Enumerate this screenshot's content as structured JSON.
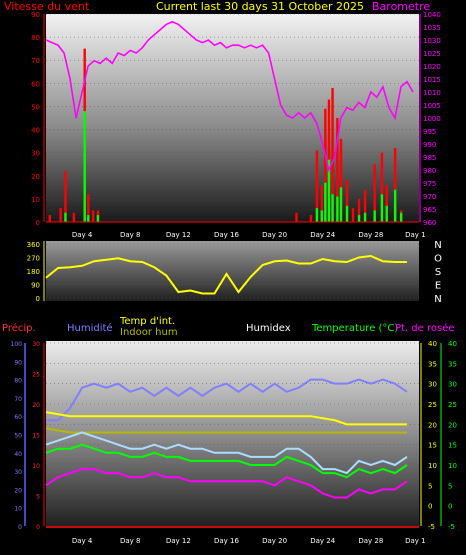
{
  "colors": {
    "wind_speed": "#ff0000",
    "barometer": "#ff00ff",
    "title": "#ffff00",
    "wind_dir": "#ffff00",
    "gust": "#00ff00",
    "precip": "#ff0000",
    "humidity": "#7f7fff",
    "temp_in": "#ffff00",
    "indoor_hum": "#b8b800",
    "humidex": "#ffffff",
    "temperature": "#00ff00",
    "dewpoint": "#ff00ff",
    "feels": "#aaddff"
  },
  "chart_data": [
    {
      "type": "line",
      "title": "Current last 30 days 31 October 2025",
      "left_label": "Vitesse du vent",
      "right_label": "Barometre",
      "x_ticks": [
        "Day 4",
        "Day 8",
        "Day 12",
        "Day 16",
        "Day 20",
        "Day 24",
        "Day 28",
        "Day 1"
      ],
      "left_ylim": [
        0,
        90
      ],
      "left_ticks": [
        "0",
        "10",
        "20",
        "30",
        "40",
        "50",
        "60",
        "70",
        "80",
        "90"
      ],
      "right_ylim": [
        960,
        1040
      ],
      "right_ticks": [
        "960",
        "965",
        "970",
        "975",
        "980",
        "985",
        "990",
        "995",
        "1000",
        "1005",
        "1010",
        "1015",
        "1020",
        "1025",
        "1030",
        "1035",
        "1040"
      ],
      "series": [
        {
          "name": "Barometre",
          "x": [
            0,
            0.5,
            1,
            1.5,
            2,
            2.5,
            3,
            3.5,
            4,
            4.5,
            5,
            5.5,
            6,
            6.5,
            7,
            7.5,
            8,
            8.5,
            9,
            9.5,
            10,
            10.5,
            11,
            11.5,
            12,
            12.5,
            13,
            13.5,
            14,
            14.5,
            15,
            15.5,
            16,
            16.5,
            17,
            17.5,
            18,
            18.5,
            19,
            19.5,
            20,
            20.5,
            21,
            21.5,
            22,
            22.5,
            23,
            23.5,
            24,
            24.5,
            25,
            25.5,
            26,
            26.5,
            27,
            27.5,
            28,
            28.5,
            29,
            29.5,
            30,
            30.5
          ],
          "values": [
            1030,
            1029,
            1028,
            1025,
            1015,
            1000,
            1010,
            1020,
            1022,
            1021,
            1023,
            1021,
            1025,
            1024,
            1026,
            1025,
            1027,
            1030,
            1032,
            1034,
            1036,
            1037,
            1036,
            1034,
            1032,
            1030,
            1029,
            1030,
            1028,
            1029,
            1027,
            1028,
            1028,
            1027,
            1028,
            1027,
            1028,
            1025,
            1015,
            1005,
            1001,
            1000,
            1002,
            1000,
            1002,
            998,
            990,
            980,
            985,
            1000,
            1004,
            1003,
            1006,
            1004,
            1010,
            1008,
            1012,
            1004,
            1000,
            1012,
            1014,
            1010
          ]
        }
      ],
      "bars": [
        {
          "name": "Vitesse du vent",
          "x": [
            0.3,
            1.2,
            1.6,
            2.3,
            3.2,
            3.5,
            3.9,
            4.3,
            20.8,
            22.0,
            22.5,
            22.9,
            23.2,
            23.5,
            23.8,
            24.2,
            24.5,
            25.0,
            25.5,
            26.0,
            26.5,
            27.3,
            27.9,
            28.3,
            29.0,
            29.5
          ],
          "values": [
            3,
            6,
            22,
            4,
            75,
            12,
            5,
            5,
            4,
            3,
            31,
            16,
            49,
            53,
            58,
            45,
            36,
            18,
            6,
            10,
            14,
            25,
            30,
            16,
            32,
            5
          ]
        },
        {
          "name": "Rafale",
          "x": [
            1.6,
            3.2,
            3.5,
            4.3,
            22.5,
            22.9,
            23.2,
            23.5,
            23.8,
            24.2,
            24.5,
            25.0,
            26.0,
            26.5,
            27.3,
            27.9,
            28.3,
            29.0,
            29.5
          ],
          "values": [
            4,
            48,
            3,
            3,
            6,
            5,
            17,
            27,
            12,
            11,
            15,
            7,
            3,
            4,
            5,
            12,
            7,
            14,
            4
          ]
        }
      ]
    },
    {
      "type": "line",
      "left_ticks": [
        "0",
        "90",
        "180",
        "270",
        "360"
      ],
      "right_labels": [
        "N",
        "O",
        "S",
        "E",
        "N"
      ],
      "ylim": [
        0,
        360
      ],
      "series": [
        {
          "name": "Direction du vent",
          "x": [
            0,
            1,
            2,
            3,
            4,
            5,
            6,
            7,
            8,
            9,
            10,
            11,
            12,
            13,
            14,
            15,
            16,
            17,
            18,
            19,
            20,
            21,
            22,
            23,
            24,
            25,
            26,
            27,
            28,
            29,
            30
          ],
          "values": [
            135,
            200,
            205,
            215,
            245,
            255,
            265,
            245,
            240,
            205,
            150,
            40,
            50,
            30,
            30,
            160,
            40,
            140,
            220,
            245,
            250,
            230,
            230,
            260,
            245,
            240,
            270,
            280,
            245,
            240,
            240
          ]
        }
      ]
    },
    {
      "type": "line",
      "labels": {
        "precip": "Précip.",
        "humidity": "Humidité",
        "temp_in": "Temp d'int.",
        "indoor_hum": "Indoor hum",
        "humidex": "Humidex",
        "temperature": "Temperature (°C)",
        "dewpoint": "Pt. de rosée"
      },
      "x_ticks": [
        "Day 4",
        "Day 8",
        "Day 12",
        "Day 16",
        "Day 20",
        "Day 24",
        "Day 28",
        "Day 1"
      ],
      "precip_ticks": [
        "0",
        "10",
        "20",
        "30",
        "40",
        "50",
        "60",
        "70",
        "80",
        "90",
        "100"
      ],
      "humidity_ticks": [
        "0",
        "5",
        "10",
        "15",
        "20",
        "25",
        "30"
      ],
      "temp_ticks": [
        "-5",
        "0",
        "5",
        "10",
        "15",
        "20",
        "25",
        "30",
        "35",
        "40"
      ],
      "temp_ylim": [
        -5,
        40
      ],
      "series": [
        {
          "name": "Humidité",
          "x": [
            0,
            1,
            2,
            3,
            4,
            5,
            6,
            7,
            8,
            9,
            10,
            11,
            12,
            13,
            14,
            15,
            16,
            17,
            18,
            19,
            20,
            21,
            22,
            23,
            24,
            25,
            26,
            27,
            28,
            29,
            30
          ],
          "values": [
            21,
            21,
            24,
            29,
            30,
            29,
            30,
            28,
            29,
            27,
            29,
            27,
            29,
            27,
            29,
            30,
            28,
            30,
            28,
            30,
            28,
            29,
            31,
            31,
            30,
            30,
            31,
            30,
            31,
            30,
            28
          ]
        },
        {
          "name": "Temp d'int.",
          "x": [
            0,
            2,
            4,
            6,
            8,
            10,
            12,
            14,
            16,
            18,
            20,
            22,
            24,
            25,
            26,
            28,
            30
          ],
          "values": [
            23,
            22,
            22,
            22,
            22,
            22,
            22,
            22,
            22,
            22,
            22,
            22,
            21,
            20,
            20,
            20,
            20
          ]
        },
        {
          "name": "Indoor hum",
          "x": [
            0,
            2,
            4,
            6,
            8,
            10,
            12,
            14,
            16,
            18,
            20,
            22,
            24,
            26,
            28,
            30
          ],
          "values": [
            19,
            18,
            18,
            18,
            18,
            18,
            18,
            18,
            18,
            18,
            18,
            18,
            18,
            18,
            18,
            18
          ]
        },
        {
          "name": "Humidex",
          "x": [
            0,
            1,
            2,
            3,
            4,
            5,
            6,
            7,
            8,
            9,
            10,
            11,
            12,
            13,
            14,
            15,
            16,
            17,
            18,
            19,
            20,
            21,
            22,
            23,
            24,
            25,
            26,
            27,
            28,
            29,
            30
          ],
          "values": [
            15,
            16,
            17,
            18,
            17,
            16,
            15,
            14,
            14,
            15,
            14,
            15,
            14,
            14,
            13,
            13,
            13,
            12,
            12,
            12,
            14,
            14,
            12,
            9,
            9,
            8,
            11,
            10,
            11,
            10,
            12
          ]
        },
        {
          "name": "Temperature (°C)",
          "x": [
            0,
            1,
            2,
            3,
            4,
            5,
            6,
            7,
            8,
            9,
            10,
            11,
            12,
            13,
            14,
            15,
            16,
            17,
            18,
            19,
            20,
            21,
            22,
            23,
            24,
            25,
            26,
            27,
            28,
            29,
            30
          ],
          "values": [
            13,
            14,
            14,
            15,
            14,
            13,
            13,
            12,
            12,
            13,
            12,
            12,
            11,
            11,
            11,
            11,
            11,
            10,
            10,
            10,
            12,
            11,
            10,
            8,
            8,
            7,
            9,
            8,
            9,
            8,
            10
          ]
        },
        {
          "name": "Pt. de rosée",
          "x": [
            0,
            1,
            2,
            3,
            4,
            5,
            6,
            7,
            8,
            9,
            10,
            11,
            12,
            13,
            14,
            15,
            16,
            17,
            18,
            19,
            20,
            21,
            22,
            23,
            24,
            25,
            26,
            27,
            28,
            29,
            30
          ],
          "values": [
            5,
            7,
            8,
            9,
            9,
            8,
            8,
            7,
            7,
            8,
            7,
            7,
            6,
            6,
            6,
            6,
            6,
            6,
            6,
            5,
            7,
            6,
            5,
            3,
            2,
            2,
            4,
            3,
            4,
            4,
            6
          ]
        }
      ]
    }
  ]
}
